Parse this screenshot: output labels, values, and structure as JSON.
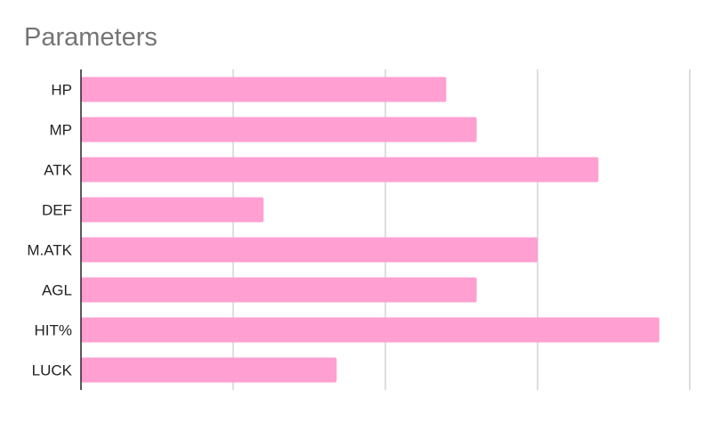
{
  "chart_data": {
    "type": "bar",
    "orientation": "horizontal",
    "title": "Parameters",
    "categories": [
      "HP",
      "MP",
      "ATK",
      "DEF",
      "M.ATK",
      "AGL",
      "HIT%",
      "LUCK"
    ],
    "values": [
      60,
      65,
      85,
      30,
      75,
      65,
      95,
      42
    ],
    "xlim": [
      0,
      100
    ],
    "grid": true,
    "axis_tick_labels_shown": false,
    "bar_color": "#ff9fd2",
    "grid_color": "#cccccc",
    "axis_color": "#222222"
  }
}
